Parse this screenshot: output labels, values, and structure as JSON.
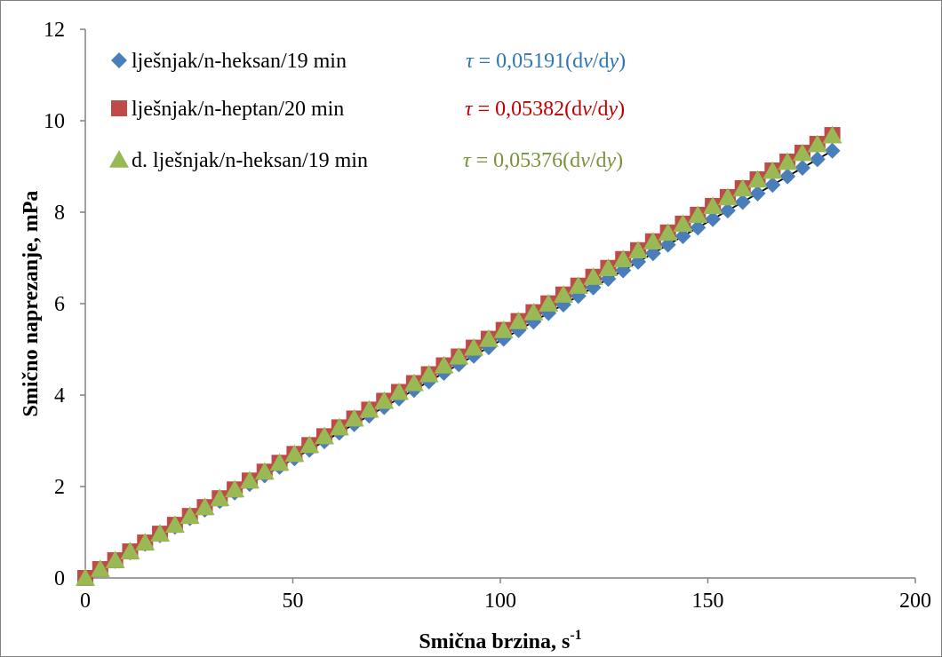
{
  "chart_data": {
    "type": "scatter",
    "title": "",
    "xlabel": "Smična brzina, s",
    "xlabel_sup": "-1",
    "ylabel": "Smično naprezanje, mPa",
    "xlim": [
      0,
      200
    ],
    "ylim": [
      0,
      12
    ],
    "x_ticks": [
      "0",
      "50",
      "100",
      "150",
      "200"
    ],
    "y_ticks": [
      "0",
      "2",
      "4",
      "6",
      "8",
      "10",
      "12"
    ],
    "grid": false,
    "legend_position": "top-left",
    "x_start": 0,
    "x_step": 3.6,
    "x_count": 51,
    "series": [
      {
        "name": "lješnjak/n-heksan/19 min",
        "marker": "diamond",
        "color": "#4a7ebb",
        "slope": 0.05191,
        "equation": {
          "prefix": "τ",
          "body": " = 0,05191(d",
          "v": "v",
          "mid": "/d",
          "y": "y",
          "end": ")",
          "color": "#2e75b6"
        }
      },
      {
        "name": "lješnjak/n-heptan/20 min",
        "marker": "square",
        "color": "#be4b48",
        "slope": 0.05382,
        "equation": {
          "prefix": "τ",
          "body": " = 0,05382(d",
          "v": "v",
          "mid": "/d",
          "y": "y",
          "end": ")",
          "color": "#c00000"
        }
      },
      {
        "name": "d. lješnjak/n-heksan/19 min",
        "marker": "triangle",
        "color": "#98b954",
        "slope": 0.05376,
        "equation": {
          "prefix": "τ",
          "body": " = 0,05376(d",
          "v": "v",
          "mid": "/d",
          "y": "y",
          "end": ")",
          "color": "#77933c"
        }
      }
    ],
    "fit_line_color": "#000000"
  }
}
